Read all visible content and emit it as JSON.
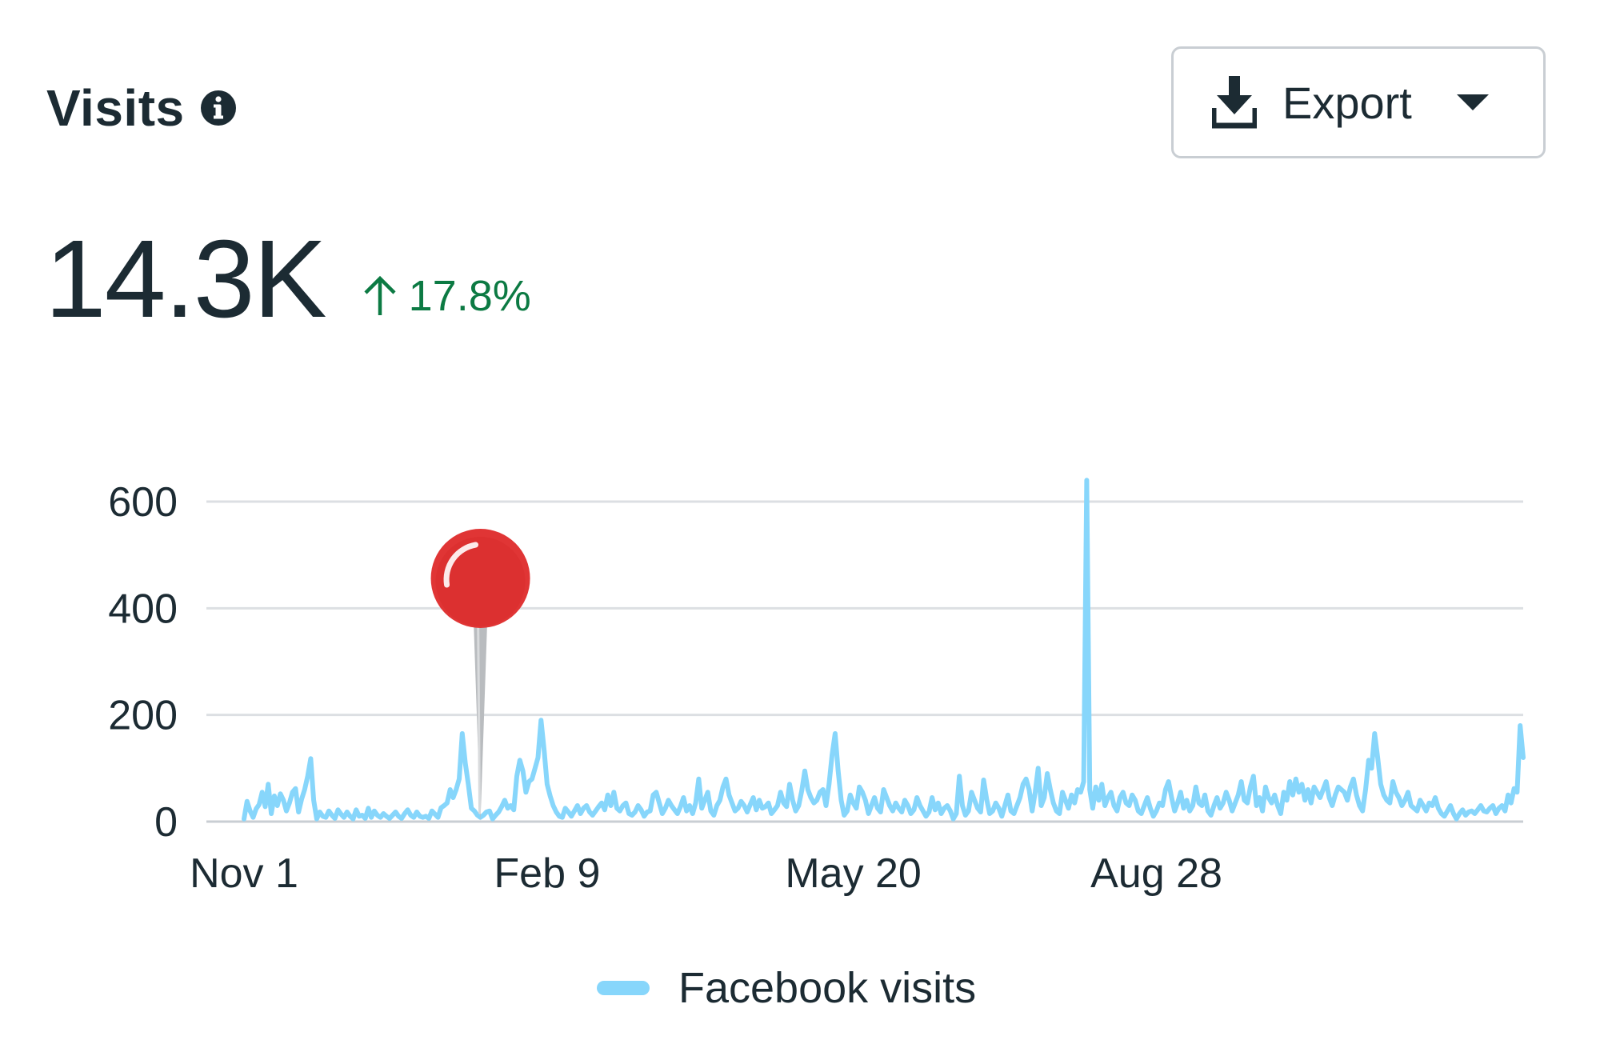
{
  "header": {
    "title": "Visits",
    "info_icon": "info-icon"
  },
  "export_button": {
    "label": "Export",
    "icon": "download-icon",
    "caret": "caret-down-icon"
  },
  "kpi": {
    "value": "14.3K",
    "change": "17.8%",
    "change_direction": "up",
    "change_color": "#0c7a43"
  },
  "pin_marker": {
    "icon": "pin-marker-icon",
    "color": "#e03535",
    "day_index": 78
  },
  "chart_data": {
    "type": "line",
    "title": "",
    "xlabel": "",
    "ylabel": "",
    "ylim": [
      0,
      600
    ],
    "y_ticks": [
      "0",
      "200",
      "400",
      "600"
    ],
    "x_ticks": [
      "Nov 1",
      "Feb 9",
      "May 20",
      "Aug 28"
    ],
    "x_tick_day_indices": [
      0,
      100,
      201,
      301
    ],
    "grid": true,
    "legend_position": "bottom-center",
    "series": [
      {
        "name": "Facebook visits",
        "color": "#87d6fb",
        "values": [
          5,
          38,
          20,
          8,
          24,
          32,
          55,
          28,
          70,
          15,
          48,
          30,
          52,
          40,
          20,
          35,
          55,
          62,
          18,
          42,
          60,
          85,
          118,
          40,
          5,
          18,
          10,
          8,
          20,
          12,
          6,
          22,
          14,
          8,
          18,
          10,
          5,
          22,
          10,
          12,
          6,
          25,
          8,
          20,
          12,
          8,
          15,
          10,
          6,
          12,
          18,
          10,
          6,
          15,
          22,
          12,
          8,
          18,
          10,
          8,
          10,
          6,
          20,
          14,
          8,
          26,
          30,
          35,
          60,
          45,
          60,
          80,
          165,
          110,
          70,
          25,
          20,
          12,
          8,
          12,
          18,
          20,
          5,
          12,
          18,
          28,
          40,
          25,
          30,
          22,
          85,
          115,
          95,
          55,
          75,
          80,
          100,
          120,
          190,
          135,
          70,
          48,
          30,
          18,
          10,
          8,
          25,
          18,
          10,
          20,
          30,
          15,
          25,
          30,
          18,
          12,
          20,
          28,
          35,
          22,
          50,
          30,
          55,
          25,
          20,
          30,
          35,
          15,
          12,
          18,
          30,
          22,
          10,
          18,
          20,
          50,
          55,
          35,
          15,
          25,
          40,
          30,
          22,
          15,
          28,
          45,
          20,
          30,
          15,
          35,
          80,
          25,
          40,
          55,
          20,
          12,
          30,
          40,
          65,
          80,
          50,
          35,
          20,
          25,
          38,
          30,
          18,
          32,
          45,
          22,
          40,
          25,
          28,
          35,
          15,
          22,
          30,
          55,
          35,
          28,
          70,
          40,
          20,
          30,
          58,
          95,
          60,
          45,
          35,
          40,
          55,
          60,
          30,
          70,
          125,
          165,
          95,
          40,
          12,
          20,
          50,
          35,
          25,
          65,
          55,
          40,
          15,
          30,
          45,
          25,
          18,
          60,
          45,
          30,
          20,
          35,
          25,
          18,
          40,
          30,
          15,
          22,
          45,
          30,
          20,
          10,
          18,
          45,
          22,
          35,
          15,
          25,
          30,
          20,
          5,
          15,
          85,
          30,
          12,
          20,
          55,
          40,
          25,
          18,
          78,
          42,
          15,
          20,
          35,
          25,
          10,
          30,
          50,
          20,
          15,
          30,
          45,
          70,
          80,
          60,
          20,
          55,
          100,
          30,
          45,
          90,
          60,
          35,
          20,
          15,
          55,
          40,
          25,
          50,
          35,
          60,
          55,
          75,
          640,
          60,
          25,
          65,
          40,
          70,
          30,
          45,
          55,
          30,
          20,
          45,
          55,
          35,
          30,
          50,
          40,
          20,
          15,
          30,
          45,
          25,
          10,
          20,
          35,
          30,
          60,
          75,
          45,
          20,
          35,
          55,
          25,
          40,
          20,
          30,
          65,
          35,
          30,
          50,
          20,
          12,
          30,
          45,
          25,
          35,
          55,
          40,
          20,
          35,
          50,
          75,
          40,
          35,
          65,
          85,
          30,
          45,
          20,
          65,
          45,
          35,
          50,
          30,
          15,
          55,
          40,
          75,
          50,
          80,
          55,
          70,
          40,
          60,
          35,
          65,
          55,
          45,
          60,
          75,
          45,
          30,
          50,
          65,
          60,
          55,
          40,
          65,
          80,
          50,
          30,
          20,
          60,
          115,
          100,
          165,
          120,
          70,
          50,
          40,
          35,
          75,
          55,
          45,
          30,
          40,
          55,
          30,
          25,
          20,
          40,
          30,
          20,
          35,
          30,
          45,
          25,
          15,
          10,
          20,
          30,
          15,
          5,
          15,
          22,
          12,
          18,
          20,
          15,
          22,
          30,
          20,
          18,
          25,
          30,
          15,
          25,
          30,
          20,
          50,
          35,
          62,
          55,
          180,
          120
        ]
      }
    ]
  }
}
